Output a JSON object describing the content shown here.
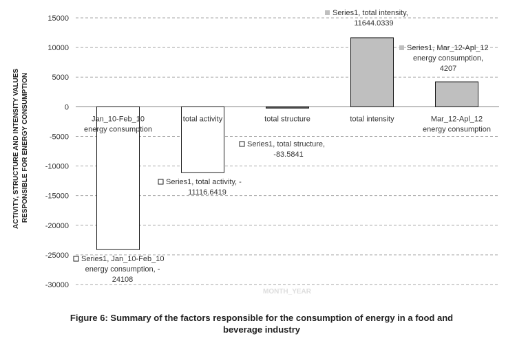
{
  "chart_data": {
    "type": "waterfall",
    "categories": [
      "Jan_10-Feb_10 energy consumption",
      "total activity",
      "total structure",
      "total intensity",
      "Mar_12-Apl_12 energy consumption"
    ],
    "category_lines": [
      [
        "Jan_10-Feb_10",
        "energy consumption"
      ],
      [
        "total activity"
      ],
      [
        "total structure"
      ],
      [
        "total intensity"
      ],
      [
        "Mar_12-Apl_12",
        "energy consumption"
      ]
    ],
    "bars": [
      {
        "from": 0,
        "to": -24108,
        "fill": "#ffffff"
      },
      {
        "from": 0,
        "to": -11116.6419,
        "fill": "#ffffff"
      },
      {
        "from": 0,
        "to": -83.5841,
        "fill": "#595959"
      },
      {
        "from": 0,
        "to": 11644.0339,
        "fill": "#bfbfbf"
      },
      {
        "from": 0,
        "to": 4207,
        "fill": "#bfbfbf"
      }
    ],
    "values": [
      -24108,
      -11116.6419,
      -83.5841,
      11644.0339,
      4207
    ],
    "data_labels": [
      {
        "lines": [
          "Series1, Jan_10-Feb_10",
          "energy consumption, -",
          "24108"
        ],
        "marker": "#ffffff"
      },
      {
        "lines": [
          "Series1, total activity, -",
          "11116.6419"
        ],
        "marker": "#ffffff"
      },
      {
        "lines": [
          "Series1, total structure,",
          "-83.5841"
        ],
        "marker": "#ffffff"
      },
      {
        "lines": [
          "Series1, total intensity,",
          "11644.0339"
        ],
        "marker": "#bfbfbf"
      },
      {
        "lines": [
          "Series1, Mar_12-Apl_12",
          "energy consumption,",
          "4207"
        ],
        "marker": "#bfbfbf"
      }
    ],
    "ylabel_lines": [
      "ACTIVITY, STRUCTURE AND INTENSITY VALUES",
      "RESPONSIBLE FOR ENERGY CONSUMPTION"
    ],
    "xlabel": "MONTH_YEAR",
    "ylim": [
      -30000,
      15000
    ],
    "yticks": [
      15000,
      10000,
      5000,
      0,
      -5000,
      -10000,
      -15000,
      -20000,
      -25000,
      -30000
    ],
    "grid": true,
    "legend": "none"
  },
  "caption": {
    "line1": "Figure 6: Summary of the factors responsible for the consumption of energy in a food and",
    "line2": "beverage industry"
  }
}
